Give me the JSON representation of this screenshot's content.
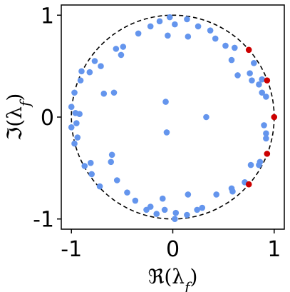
{
  "chart_data": {
    "type": "scatter",
    "xlabel": "ℜ(λ_f)",
    "ylabel": "ℑ(λ_f)",
    "xlim": [
      -1.1,
      1.1
    ],
    "ylim": [
      -1.1,
      1.1
    ],
    "xticks": [
      {
        "value": -1,
        "label": "-1"
      },
      {
        "value": 0,
        "label": "0"
      },
      {
        "value": 1,
        "label": "1"
      }
    ],
    "yticks": [
      {
        "value": -1,
        "label": "-1"
      },
      {
        "value": 0,
        "label": "0"
      },
      {
        "value": 1,
        "label": "1"
      }
    ],
    "grid": false,
    "legend": "none",
    "reference_curve": {
      "type": "unit-circle",
      "radius": 1,
      "style": "dashed",
      "color": "#000000"
    },
    "series": [
      {
        "color": "#6495ED",
        "points": [
          [
            0.14,
            0.96
          ],
          [
            -0.13,
            0.94
          ],
          [
            0.02,
            0.91
          ],
          [
            -0.22,
            0.89
          ],
          [
            0.25,
            0.89
          ],
          [
            -0.34,
            0.82
          ],
          [
            0.37,
            0.85
          ],
          [
            -0.05,
            0.8
          ],
          [
            0.15,
            0.79
          ],
          [
            0.42,
            0.77
          ],
          [
            -0.49,
            0.69
          ],
          [
            -0.56,
            0.67
          ],
          [
            0.52,
            0.7
          ],
          [
            0.61,
            0.68
          ],
          [
            -0.51,
            0.61
          ],
          [
            -0.77,
            0.55
          ],
          [
            -0.71,
            0.5
          ],
          [
            0.58,
            0.56
          ],
          [
            0.8,
            0.53
          ],
          [
            -0.9,
            0.45
          ],
          [
            -0.82,
            0.44
          ],
          [
            0.76,
            0.43
          ],
          [
            -0.91,
            0.36
          ],
          [
            0.64,
            0.41
          ],
          [
            0.78,
            0.36
          ],
          [
            -0.97,
            0.24
          ],
          [
            -0.58,
            0.24
          ],
          [
            0.85,
            0.32
          ],
          [
            0.92,
            0.2
          ],
          [
            -0.68,
            0.23
          ],
          [
            0.88,
            0.24
          ],
          [
            -1.0,
            0.1
          ],
          [
            -0.96,
            0.04
          ],
          [
            -0.92,
            0.03
          ],
          [
            -0.95,
            -0.06
          ],
          [
            -1.0,
            -0.1
          ],
          [
            -0.94,
            -0.2
          ],
          [
            -0.97,
            -0.26
          ],
          [
            0.9,
            -0.08
          ],
          [
            0.92,
            -0.16
          ],
          [
            0.92,
            -0.21
          ],
          [
            -0.81,
            -0.45
          ],
          [
            -0.87,
            -0.48
          ],
          [
            -0.6,
            -0.37
          ],
          [
            -0.61,
            -0.44
          ],
          [
            0.86,
            -0.44
          ],
          [
            0.85,
            -0.47
          ],
          [
            0.77,
            -0.47
          ],
          [
            -0.8,
            -0.56
          ],
          [
            -0.55,
            -0.62
          ],
          [
            -0.72,
            -0.68
          ],
          [
            0.71,
            -0.64
          ],
          [
            0.58,
            -0.7
          ],
          [
            0.59,
            -0.73
          ],
          [
            -0.45,
            -0.74
          ],
          [
            0.43,
            -0.76
          ],
          [
            -0.37,
            -0.82
          ],
          [
            0.15,
            -0.76
          ],
          [
            -0.1,
            -0.8
          ],
          [
            0.29,
            -0.89
          ],
          [
            -0.22,
            -0.88
          ],
          [
            -0.08,
            -0.91
          ],
          [
            0.03,
            -0.94
          ],
          [
            0.14,
            -0.96
          ],
          [
            -0.16,
            -0.95
          ],
          [
            0.24,
            -0.91
          ],
          [
            -0.26,
            -0.91
          ],
          [
            -0.03,
            0.98
          ],
          [
            0.02,
            -1.0
          ],
          [
            0.88,
            0.37
          ],
          [
            -0.07,
            0.15
          ],
          [
            -0.06,
            -0.15
          ],
          [
            0.33,
            0.0
          ]
        ]
      },
      {
        "color": "#CC0000",
        "points": [
          [
            1.0,
            0.0
          ],
          [
            0.93,
            0.36
          ],
          [
            0.93,
            -0.36
          ],
          [
            0.75,
            0.66
          ],
          [
            0.75,
            -0.66
          ]
        ]
      }
    ]
  }
}
